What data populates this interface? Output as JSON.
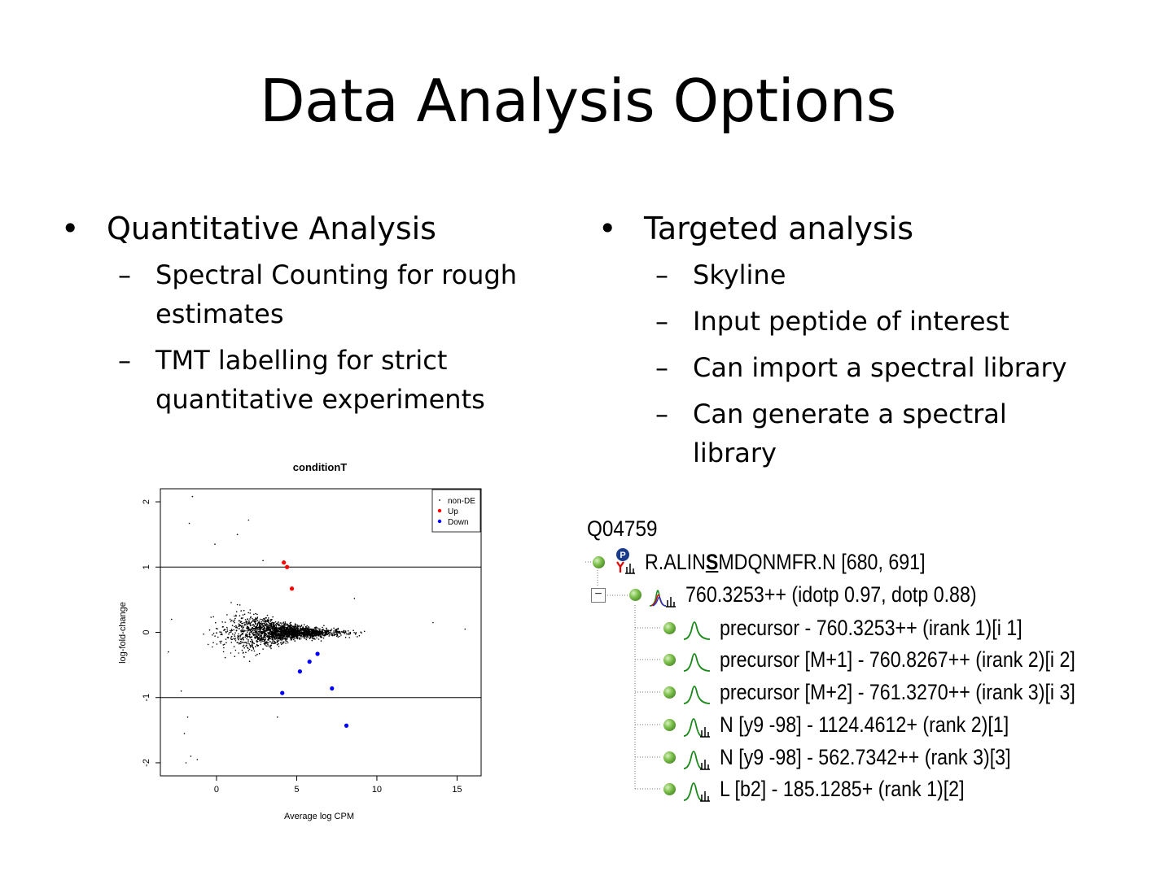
{
  "slide": {
    "title": "Data Analysis Options",
    "left": {
      "heading": "Quantitative Analysis",
      "items": [
        {
          "lines": [
            "Spectral Counting for rough",
            "estimates"
          ]
        },
        {
          "lines": [
            "TMT labelling for strict",
            "quantitative experiments"
          ]
        }
      ]
    },
    "right": {
      "heading": "Targeted analysis",
      "items": [
        {
          "lines": [
            "Skyline"
          ]
        },
        {
          "lines": [
            "Input peptide of interest"
          ]
        },
        {
          "lines": [
            "Can import a spectral library"
          ]
        },
        {
          "lines": [
            "Can generate a spectral",
            "library"
          ]
        }
      ]
    },
    "bullet": "•",
    "dash": "–"
  },
  "chart_data": {
    "type": "scatter",
    "title": "conditionT",
    "xlabel": "Average log CPM",
    "ylabel": "log-fold-change",
    "xlim": [
      -3.5,
      16.5
    ],
    "ylim": [
      -2.2,
      2.2
    ],
    "x_ticks": [
      0,
      5,
      10,
      15
    ],
    "y_ticks": [
      -2,
      -1,
      0,
      1,
      2
    ],
    "hlines": [
      -1,
      1
    ],
    "legend": {
      "placement": "top-right",
      "entries": [
        "non-DE",
        "Up",
        "Down"
      ]
    },
    "colors": {
      "non-DE": "#000000",
      "Up": "#ff0000",
      "Down": "#0000ff"
    },
    "series": [
      {
        "name": "Up",
        "points": [
          [
            4.2,
            1.07
          ],
          [
            4.4,
            1.0
          ],
          [
            4.7,
            0.67
          ]
        ]
      },
      {
        "name": "Down",
        "points": [
          [
            4.1,
            -0.93
          ],
          [
            5.2,
            -0.6
          ],
          [
            5.8,
            -0.45
          ],
          [
            6.3,
            -0.33
          ],
          [
            7.2,
            -0.86
          ],
          [
            8.1,
            -1.43
          ]
        ]
      },
      {
        "name": "non-DE",
        "n_points": 2200,
        "outliers": [
          [
            -1.5,
            2.08
          ],
          [
            -1.7,
            1.67
          ],
          [
            2.0,
            1.72
          ],
          [
            1.3,
            1.5
          ],
          [
            -0.1,
            1.35
          ],
          [
            2.9,
            1.1
          ],
          [
            -2.8,
            0.2
          ],
          [
            -3.0,
            -0.3
          ],
          [
            -2.2,
            -0.9
          ],
          [
            -1.8,
            -1.3
          ],
          [
            -2.0,
            -1.55
          ],
          [
            -1.6,
            -1.9
          ],
          [
            -1.2,
            -1.95
          ],
          [
            -1.9,
            -2.0
          ],
          [
            3.8,
            -1.3
          ],
          [
            8.6,
            0.52
          ],
          [
            13.5,
            0.15
          ],
          [
            15.5,
            0.05
          ]
        ]
      }
    ]
  },
  "skyline": {
    "protein": "Q04759",
    "peptide": {
      "prefix": "R.ALIN",
      "mod": "S",
      "suffix": "MDQNMFR.N [680, 691]"
    },
    "precursor": "760.3253++ (idotp 0.97, dotp 0.88)",
    "transitions": [
      {
        "label": "precursor - 760.3253++ (irank 1)[i 1]",
        "icon": "peak-icon"
      },
      {
        "label": "precursor [M+1] - 760.8267++ (irank 2)[i 2]",
        "icon": "peak-icon"
      },
      {
        "label": "precursor [M+2] - 761.3270++ (irank 3)[i 3]",
        "icon": "peak-icon"
      },
      {
        "label": "N [y9 -98] - 1124.4612+ (rank 2)[1]",
        "icon": "peak-spectrum-icon"
      },
      {
        "label": "N [y9 -98] - 562.7342++ (rank 3)[3]",
        "icon": "peak-spectrum-icon"
      },
      {
        "label": "L [b2] - 185.1285+ (rank 1)[2]",
        "icon": "peak-spectrum-icon"
      }
    ]
  }
}
